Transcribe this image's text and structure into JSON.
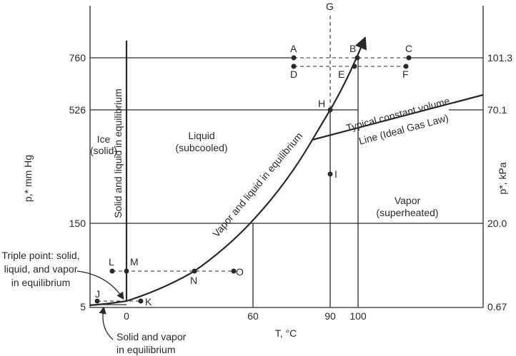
{
  "left_axis": {
    "label": "p,* mm Hg",
    "ticks": [
      "760",
      "526",
      "150",
      "5"
    ]
  },
  "right_axis": {
    "label": "p*, kPa",
    "ticks": [
      "101.3",
      "70.1",
      "20.0",
      "0.67"
    ]
  },
  "x_axis": {
    "label": "T, °C",
    "ticks": [
      "0",
      "60",
      "90",
      "100"
    ]
  },
  "points": [
    "A",
    "B",
    "C",
    "D",
    "E",
    "F",
    "G",
    "H",
    "I",
    "J",
    "K",
    "L",
    "M",
    "N",
    "O"
  ],
  "regions": {
    "ice": "Ice",
    "ice2": "(solid)",
    "liquid": "Liquid",
    "liquid2": "(subcooled)",
    "vapor": "Vapor",
    "vapor2": "(superheated)"
  },
  "curves": {
    "solid_liquid": "Solid and liquid in equilibrium",
    "vapor_liquid": "Vapor and liquid in equilibrium",
    "const_vol1": "Typical constant volume",
    "const_vol2": "Line (Ideal Gas Law)"
  },
  "annotations": {
    "triple1": "Triple point: solid,",
    "triple2": "liquid, and vapor",
    "triple3": "in equilibrium",
    "sv1": "Solid and vapor",
    "sv2": "in equilibrium"
  }
}
